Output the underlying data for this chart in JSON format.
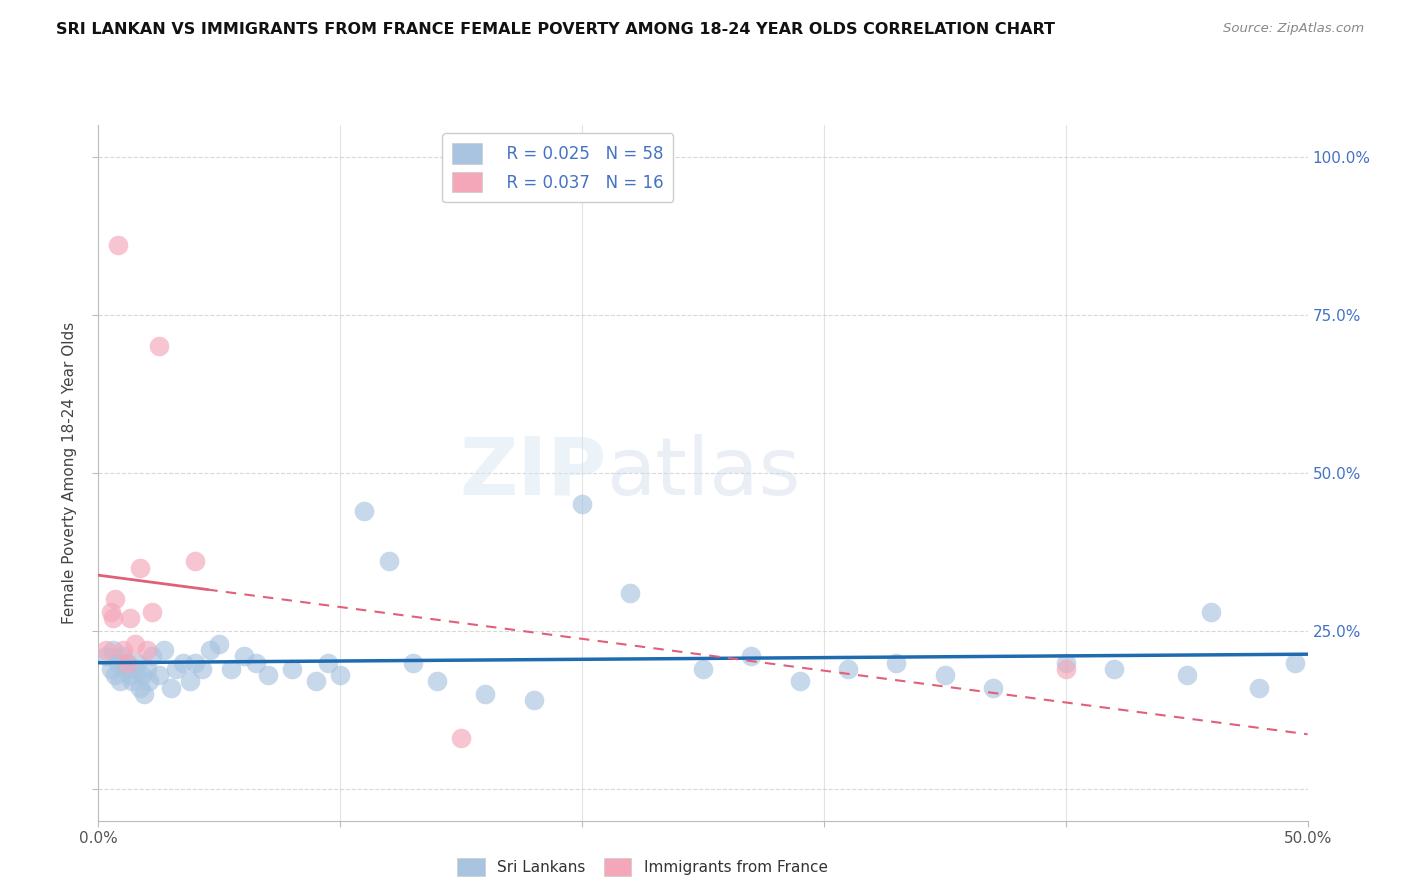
{
  "title": "SRI LANKAN VS IMMIGRANTS FROM FRANCE FEMALE POVERTY AMONG 18-24 YEAR OLDS CORRELATION CHART",
  "source": "Source: ZipAtlas.com",
  "ylabel": "Female Poverty Among 18-24 Year Olds",
  "xlim": [
    0.0,
    0.5
  ],
  "ylim": [
    -0.05,
    1.05
  ],
  "xticks": [
    0.0,
    0.1,
    0.2,
    0.3,
    0.4,
    0.5
  ],
  "xticklabels": [
    "0.0%",
    "",
    "",
    "",
    "",
    "50.0%"
  ],
  "yticks": [
    0.0,
    0.25,
    0.5,
    0.75,
    1.0
  ],
  "yticklabels": [
    "",
    "25.0%",
    "50.0%",
    "75.0%",
    "100.0%"
  ],
  "watermark_zip": "ZIP",
  "watermark_atlas": "atlas",
  "legend_r1": "R = 0.025",
  "legend_n1": "N = 58",
  "legend_r2": "R = 0.037",
  "legend_n2": "N = 16",
  "sri_lankans_color": "#a8c4e0",
  "immigrants_color": "#f4a7b9",
  "sri_lankans_line_color": "#1f6bb0",
  "immigrants_line_color": "#e0607a",
  "sri_lankans_x": [
    0.003,
    0.005,
    0.006,
    0.007,
    0.008,
    0.009,
    0.01,
    0.011,
    0.012,
    0.013,
    0.014,
    0.015,
    0.016,
    0.017,
    0.018,
    0.019,
    0.02,
    0.021,
    0.022,
    0.025,
    0.027,
    0.03,
    0.032,
    0.035,
    0.038,
    0.04,
    0.043,
    0.046,
    0.05,
    0.055,
    0.06,
    0.065,
    0.07,
    0.08,
    0.09,
    0.095,
    0.1,
    0.11,
    0.12,
    0.13,
    0.14,
    0.16,
    0.18,
    0.2,
    0.22,
    0.25,
    0.27,
    0.29,
    0.31,
    0.33,
    0.35,
    0.37,
    0.4,
    0.42,
    0.45,
    0.46,
    0.48,
    0.495
  ],
  "sri_lankans_y": [
    0.21,
    0.19,
    0.22,
    0.18,
    0.2,
    0.17,
    0.21,
    0.19,
    0.2,
    0.18,
    0.17,
    0.19,
    0.2,
    0.16,
    0.18,
    0.15,
    0.19,
    0.17,
    0.21,
    0.18,
    0.22,
    0.16,
    0.19,
    0.2,
    0.17,
    0.2,
    0.19,
    0.22,
    0.23,
    0.19,
    0.21,
    0.2,
    0.18,
    0.19,
    0.17,
    0.2,
    0.18,
    0.44,
    0.36,
    0.2,
    0.17,
    0.15,
    0.14,
    0.45,
    0.31,
    0.19,
    0.21,
    0.17,
    0.19,
    0.2,
    0.18,
    0.16,
    0.2,
    0.19,
    0.18,
    0.28,
    0.16,
    0.2
  ],
  "immigrants_x": [
    0.003,
    0.005,
    0.006,
    0.007,
    0.008,
    0.01,
    0.012,
    0.013,
    0.015,
    0.017,
    0.02,
    0.022,
    0.025,
    0.04,
    0.15,
    0.4
  ],
  "immigrants_y": [
    0.22,
    0.28,
    0.27,
    0.3,
    0.86,
    0.22,
    0.2,
    0.27,
    0.23,
    0.35,
    0.22,
    0.28,
    0.7,
    0.36,
    0.08,
    0.19
  ],
  "background_color": "#ffffff",
  "grid_color": "#c8c8c8"
}
